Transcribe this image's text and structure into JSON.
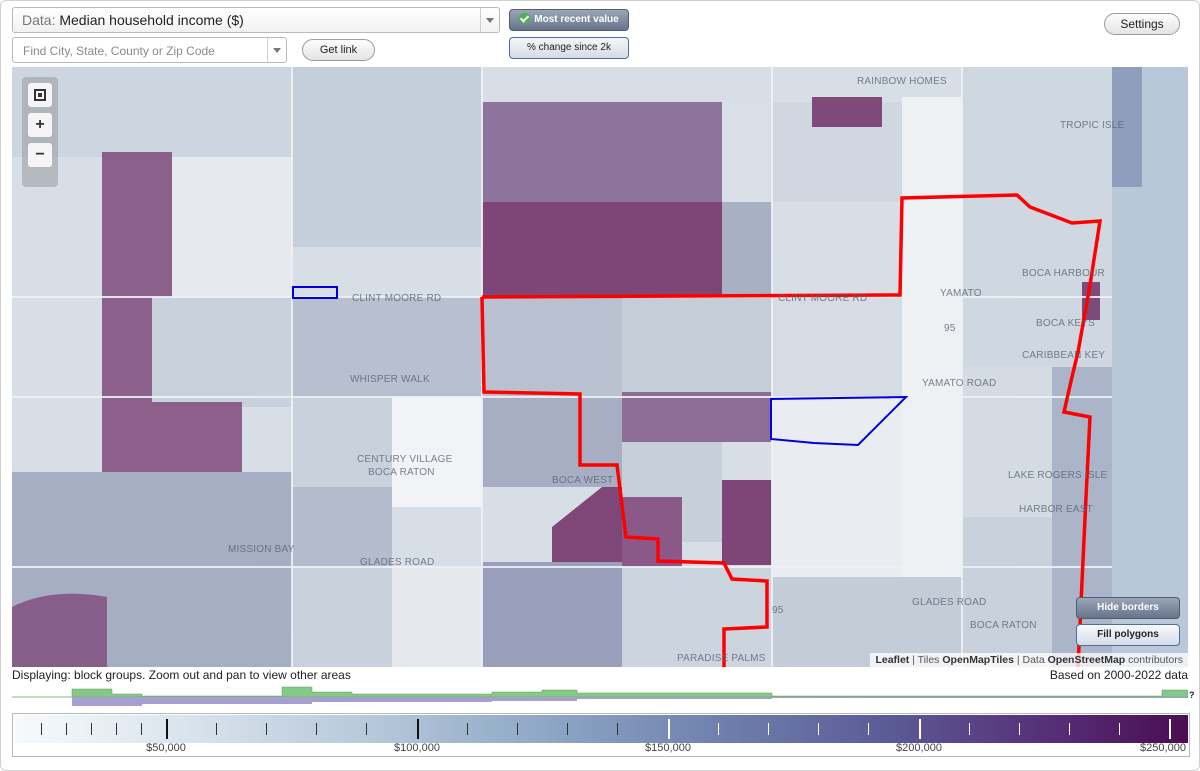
{
  "data_select": {
    "prefix": "Data:",
    "value": "Median household income ($)"
  },
  "search": {
    "placeholder": "Find City, State, County or Zip Code"
  },
  "buttons": {
    "get_link": "Get link",
    "most_recent": "Most recent value",
    "pct_change": "% change since 2k",
    "settings": "Settings",
    "hide_borders": "Hide borders",
    "fill_polygons": "Fill polygons"
  },
  "zoom": {
    "fit": "fit-icon",
    "plus": "+",
    "minus": "−"
  },
  "map_labels": [
    "RAINBOW HOMES",
    "TROPIC ISLE",
    "BOCA HARBOUR",
    "BOCA KEYS",
    "CARIBBEAN KEY",
    "YAMATO",
    "YAMATO ROAD",
    "CLINT MOORE RD",
    "CLINT MOORE RD",
    "WHISPER WALK",
    "CENTURY VILLAGE",
    "BOCA RATON",
    "BOCA WEST",
    "LAKE ROGERS ISLE",
    "HARBOR EAST",
    "MISSION BAY",
    "GLADES ROAD",
    "GLADES ROAD",
    "BOCA RATON",
    "PARADISE PALMS",
    "95",
    "95"
  ],
  "attribution": {
    "leaflet": "Leaflet",
    "tiles_prefix": "Tiles",
    "tiles": "OpenMapTiles",
    "data_prefix": "Data",
    "data": "OpenStreetMap",
    "suffix": "contributors"
  },
  "status": {
    "displaying": "Displaying: block groups. Zoom out and pan to view other areas",
    "based_on": "Based on 2000-2022 data"
  },
  "legend": {
    "labels": [
      "$50,000",
      "$100,000",
      "$150,000",
      "$200,000",
      "$250,000"
    ],
    "help": "?"
  },
  "colors": {
    "accent_red": "#ff0000",
    "selection_blue": "#0000dd",
    "scale_low": "#f7fafc",
    "scale_high": "#4a0d52",
    "histogram_green": "#7fc77f",
    "histogram_purple": "#a59fd0"
  }
}
